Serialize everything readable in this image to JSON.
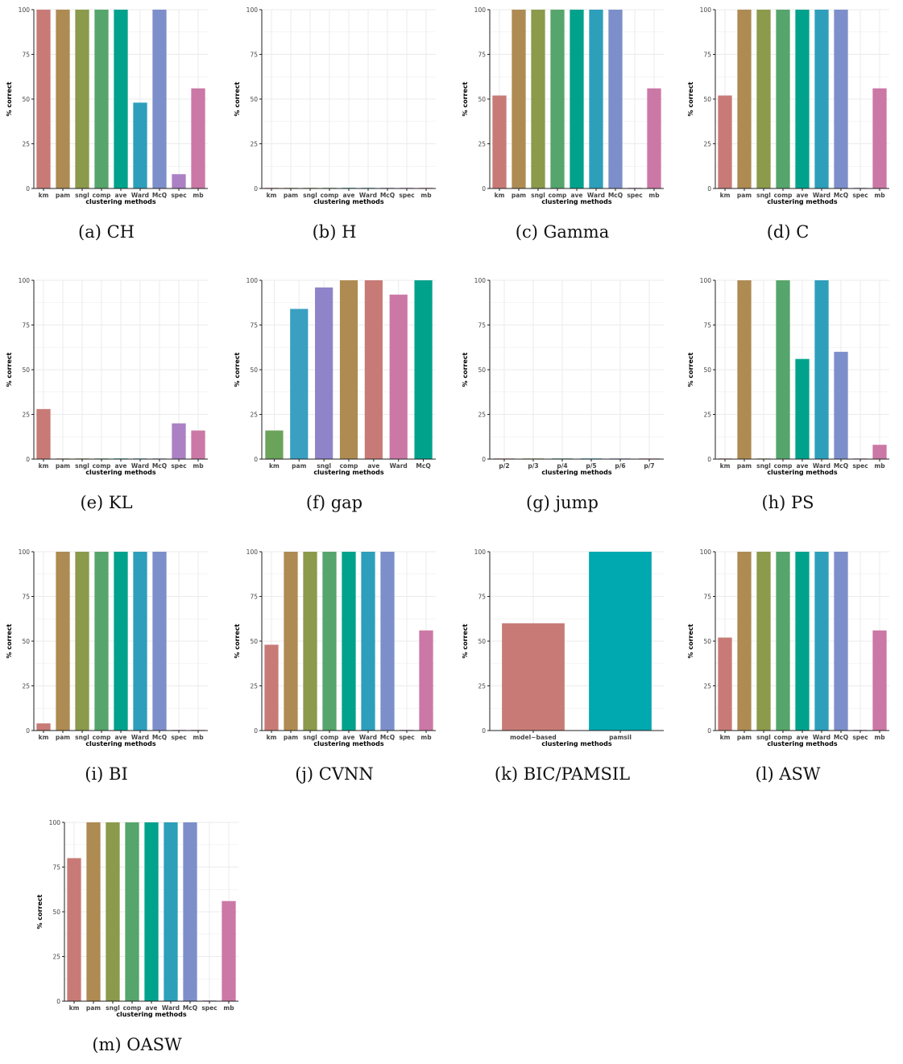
{
  "colors": {
    "km": "#c87b76",
    "pam": "#ae8b52",
    "sngl": "#8b9a4b",
    "comp": "#56a56c",
    "ave": "#00a28c",
    "Ward": "#2d9fba",
    "McQ": "#7d8fca",
    "spec": "#ab80c4",
    "mb": "#cb78a6",
    "grid": "#ebebeb",
    "axis": "#222222",
    "text": "#444444"
  },
  "chart_data": [
    {
      "type": "bar",
      "caption": "(a) CH",
      "ylabel": "% correct",
      "xlabel": "clustering methods",
      "ylim": [
        0,
        100
      ],
      "yticks": [
        "0",
        "25",
        "50",
        "75",
        "100"
      ],
      "grid": true,
      "categories": [
        "km",
        "pam",
        "sngl",
        "comp",
        "ave",
        "Ward",
        "McQ",
        "spec",
        "mb"
      ],
      "values": [
        100,
        100,
        100,
        100,
        100,
        48,
        100,
        8,
        56
      ],
      "bar_colors": [
        "#c87b76",
        "#ae8b52",
        "#8b9a4b",
        "#56a56c",
        "#00a28c",
        "#2d9fba",
        "#7d8fca",
        "#ab80c4",
        "#cb78a6"
      ]
    },
    {
      "type": "bar",
      "caption": "(b) H",
      "ylabel": "% correct",
      "xlabel": "clustering methods",
      "ylim": [
        0,
        100
      ],
      "yticks": [
        "0",
        "25",
        "50",
        "75",
        "100"
      ],
      "grid": true,
      "categories": [
        "km",
        "pam",
        "sngl",
        "comp",
        "ave",
        "Ward",
        "McQ",
        "spec",
        "mb"
      ],
      "values": [
        0,
        0,
        0,
        0,
        0,
        0,
        0,
        0,
        0
      ],
      "bar_colors": [
        "#c87b76",
        "#ae8b52",
        "#8b9a4b",
        "#56a56c",
        "#00a28c",
        "#2d9fba",
        "#7d8fca",
        "#ab80c4",
        "#cb78a6"
      ]
    },
    {
      "type": "bar",
      "caption": "(c) Gamma",
      "ylabel": "% correct",
      "xlabel": "clustering methods",
      "ylim": [
        0,
        100
      ],
      "yticks": [
        "0",
        "25",
        "50",
        "75",
        "100"
      ],
      "grid": true,
      "categories": [
        "km",
        "pam",
        "sngl",
        "comp",
        "ave",
        "Ward",
        "McQ",
        "spec",
        "mb"
      ],
      "values": [
        52,
        100,
        100,
        100,
        100,
        100,
        100,
        0,
        56
      ],
      "bar_colors": [
        "#c87b76",
        "#ae8b52",
        "#8b9a4b",
        "#56a56c",
        "#00a28c",
        "#2d9fba",
        "#7d8fca",
        "#ab80c4",
        "#cb78a6"
      ]
    },
    {
      "type": "bar",
      "caption": "(d) C",
      "ylabel": "% correct",
      "xlabel": "clustering methods",
      "ylim": [
        0,
        100
      ],
      "yticks": [
        "0",
        "25",
        "50",
        "75",
        "100"
      ],
      "grid": true,
      "categories": [
        "km",
        "pam",
        "sngl",
        "comp",
        "ave",
        "Ward",
        "McQ",
        "spec",
        "mb"
      ],
      "values": [
        52,
        100,
        100,
        100,
        100,
        100,
        100,
        0,
        56
      ],
      "bar_colors": [
        "#c87b76",
        "#ae8b52",
        "#8b9a4b",
        "#56a56c",
        "#00a28c",
        "#2d9fba",
        "#7d8fca",
        "#ab80c4",
        "#cb78a6"
      ]
    },
    {
      "type": "bar",
      "caption": "(e) KL",
      "ylabel": "% correct",
      "xlabel": "clustering methods",
      "ylim": [
        0,
        100
      ],
      "yticks": [
        "0",
        "25",
        "50",
        "75",
        "100"
      ],
      "grid": true,
      "categories": [
        "km",
        "pam",
        "sngl",
        "comp",
        "ave",
        "Ward",
        "McQ",
        "spec",
        "mb"
      ],
      "values": [
        28,
        0,
        0,
        0,
        0,
        0,
        0,
        20,
        16
      ],
      "bar_colors": [
        "#c87b76",
        "#ae8b52",
        "#8b9a4b",
        "#56a56c",
        "#00a28c",
        "#2d9fba",
        "#7d8fca",
        "#ab80c4",
        "#cb78a6"
      ]
    },
    {
      "type": "bar",
      "caption": "(f) gap",
      "ylabel": "% correct",
      "xlabel": "clustering methods",
      "ylim": [
        0,
        100
      ],
      "yticks": [
        "0",
        "25",
        "50",
        "75",
        "100"
      ],
      "grid": true,
      "categories": [
        "km",
        "pam",
        "sngl",
        "comp",
        "ave",
        "Ward",
        "McQ"
      ],
      "values": [
        16,
        84,
        96,
        100,
        100,
        92,
        100
      ],
      "bar_colors": [
        "#6aa35a",
        "#3a9fc1",
        "#8f84c9",
        "#ae8b52",
        "#c87b76",
        "#cb78a6",
        "#00a28c"
      ]
    },
    {
      "type": "bar",
      "caption": "(g) jump",
      "ylabel": "% correct",
      "xlabel": "clustering methods",
      "ylim": [
        0,
        100
      ],
      "yticks": [
        "0",
        "25",
        "50",
        "75",
        "100"
      ],
      "grid": true,
      "categories": [
        "p/2",
        "p/3",
        "p/4",
        "p/5",
        "p/6",
        "p/7"
      ],
      "values": [
        0,
        0,
        0,
        0,
        0,
        0
      ],
      "bar_colors": [
        "#c87b76",
        "#9a9a3e",
        "#2fa56e",
        "#00a0b0",
        "#7d8fca",
        "#cb78a6"
      ]
    },
    {
      "type": "bar",
      "caption": "(h) PS",
      "ylabel": "% correct",
      "xlabel": "clustering methods",
      "ylim": [
        0,
        100
      ],
      "yticks": [
        "0",
        "25",
        "50",
        "75",
        "100"
      ],
      "grid": true,
      "categories": [
        "km",
        "pam",
        "sngl",
        "comp",
        "ave",
        "Ward",
        "McQ",
        "spec",
        "mb"
      ],
      "values": [
        0,
        100,
        0,
        100,
        56,
        100,
        60,
        0,
        8
      ],
      "bar_colors": [
        "#c87b76",
        "#ae8b52",
        "#8b9a4b",
        "#56a56c",
        "#00a28c",
        "#2d9fba",
        "#7d8fca",
        "#ab80c4",
        "#cb78a6"
      ]
    },
    {
      "type": "bar",
      "caption": "(i) BI",
      "ylabel": "% correct",
      "xlabel": "clustering methods",
      "ylim": [
        0,
        100
      ],
      "yticks": [
        "0",
        "25",
        "50",
        "75",
        "100"
      ],
      "grid": true,
      "categories": [
        "km",
        "pam",
        "sngl",
        "comp",
        "ave",
        "Ward",
        "McQ",
        "spec",
        "mb"
      ],
      "values": [
        4,
        100,
        100,
        100,
        100,
        100,
        100,
        0,
        0
      ],
      "bar_colors": [
        "#c87b76",
        "#ae8b52",
        "#8b9a4b",
        "#56a56c",
        "#00a28c",
        "#2d9fba",
        "#7d8fca",
        "#ab80c4",
        "#cb78a6"
      ]
    },
    {
      "type": "bar",
      "caption": "(j) CVNN",
      "ylabel": "% correct",
      "xlabel": "clustering methods",
      "ylim": [
        0,
        100
      ],
      "yticks": [
        "0",
        "25",
        "50",
        "75",
        "100"
      ],
      "grid": true,
      "categories": [
        "km",
        "pam",
        "sngl",
        "comp",
        "ave",
        "Ward",
        "McQ",
        "spec",
        "mb"
      ],
      "values": [
        48,
        100,
        100,
        100,
        100,
        100,
        100,
        0,
        56
      ],
      "bar_colors": [
        "#c87b76",
        "#ae8b52",
        "#8b9a4b",
        "#56a56c",
        "#00a28c",
        "#2d9fba",
        "#7d8fca",
        "#ab80c4",
        "#cb78a6"
      ]
    },
    {
      "type": "bar",
      "caption": "(k) BIC/PAMSIL",
      "ylabel": "% correct",
      "xlabel": "clustering methods",
      "ylim": [
        0,
        100
      ],
      "yticks": [
        "0",
        "25",
        "50",
        "75",
        "100"
      ],
      "grid": true,
      "categories": [
        "model−based",
        "pamsil"
      ],
      "values": [
        60,
        100
      ],
      "bar_colors": [
        "#c87b76",
        "#00a8b0"
      ]
    },
    {
      "type": "bar",
      "caption": "(l) ASW",
      "ylabel": "% correct",
      "xlabel": "clustering methods",
      "ylim": [
        0,
        100
      ],
      "yticks": [
        "0",
        "25",
        "50",
        "75",
        "100"
      ],
      "grid": true,
      "categories": [
        "km",
        "pam",
        "sngl",
        "comp",
        "ave",
        "Ward",
        "McQ",
        "spec",
        "mb"
      ],
      "values": [
        52,
        100,
        100,
        100,
        100,
        100,
        100,
        0,
        56
      ],
      "bar_colors": [
        "#c87b76",
        "#ae8b52",
        "#8b9a4b",
        "#56a56c",
        "#00a28c",
        "#2d9fba",
        "#7d8fca",
        "#ab80c4",
        "#cb78a6"
      ]
    },
    {
      "type": "bar",
      "caption": "(m) OASW",
      "ylabel": "% correct",
      "xlabel": "clustering methods",
      "ylim": [
        0,
        100
      ],
      "yticks": [
        "0",
        "25",
        "50",
        "75",
        "100"
      ],
      "grid": true,
      "categories": [
        "km",
        "pam",
        "sngl",
        "comp",
        "ave",
        "Ward",
        "McQ",
        "spec",
        "mb"
      ],
      "values": [
        80,
        100,
        100,
        100,
        100,
        100,
        100,
        0,
        56
      ],
      "bar_colors": [
        "#c87b76",
        "#ae8b52",
        "#8b9a4b",
        "#56a56c",
        "#00a28c",
        "#2d9fba",
        "#7d8fca",
        "#ab80c4",
        "#cb78a6"
      ]
    }
  ]
}
